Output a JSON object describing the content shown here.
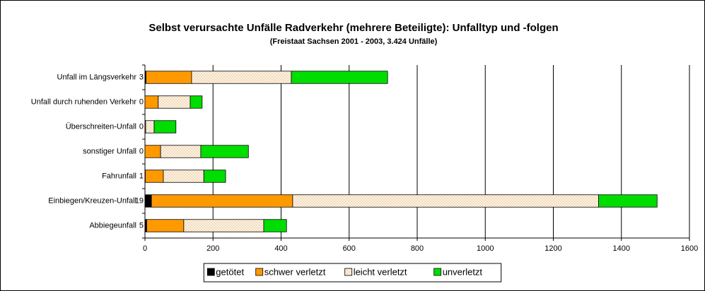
{
  "chart_data": {
    "type": "bar",
    "orientation": "horizontal",
    "stacked": true,
    "title": "Selbst verursachte Unfälle Radverkehr (mehrere Beteiligte): Unfalltyp und -folgen",
    "subtitle": "(Freistaat Sachsen 2001 - 2003, 3.424 Unfälle)",
    "categories": [
      "Unfall im Längsverkehr",
      "Unfall durch ruhenden Verkehr",
      "Überschreiten-Unfall",
      "sonstiger Unfall",
      "Fahrunfall",
      "Einbiegen/Kreuzen-Unfall",
      "Abbiegeunfall"
    ],
    "series": [
      {
        "name": "getötet",
        "color": "#000000",
        "values": [
          3,
          0,
          0,
          0,
          1,
          19,
          5
        ]
      },
      {
        "name": "schwer verletzt",
        "color": "#ff9900",
        "values": [
          134,
          39,
          2,
          46,
          53,
          415,
          109
        ]
      },
      {
        "name": "leicht verletzt",
        "color": "#fdf3e3",
        "values": [
          293,
          94,
          25,
          118,
          119,
          899,
          235
        ]
      },
      {
        "name": "unverletzt",
        "color": "#00dd00",
        "values": [
          283,
          35,
          64,
          140,
          64,
          172,
          67
        ]
      }
    ],
    "xlim": [
      0,
      1600
    ],
    "xticks": [
      0,
      200,
      400,
      600,
      800,
      1000,
      1200,
      1400,
      1600
    ],
    "grid": true,
    "legend": "bottom"
  }
}
